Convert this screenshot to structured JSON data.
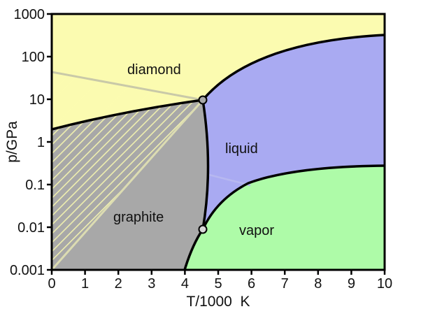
{
  "diagram": {
    "x_axis": {
      "label": "T/1000  K",
      "ticks": [
        "0",
        "1",
        "2",
        "3",
        "4",
        "5",
        "6",
        "7",
        "8",
        "9",
        "10"
      ]
    },
    "y_axis": {
      "label": "p/GPa",
      "ticks": [
        "0.001",
        "0.01",
        "0.1",
        "1",
        "10",
        "100",
        "1000"
      ],
      "scale": "log"
    },
    "regions": {
      "diamond": "diamond",
      "liquid": "liquid",
      "graphite": "graphite",
      "vapor": "vapor"
    },
    "colors": {
      "diamond": "#fbfbb0",
      "liquid": "#a9aaf2",
      "graphite": "#a8a8a8",
      "vapor": "#aefba8",
      "boundary": "#000000",
      "hatch_light": "#fbfbb0",
      "hatch_blue": "#a9aaf2"
    },
    "triple_points": [
      {
        "T_thousand_K": 4.5,
        "p_GPa": 10
      },
      {
        "T_thousand_K": 4.5,
        "p_GPa": 0.01
      }
    ]
  }
}
